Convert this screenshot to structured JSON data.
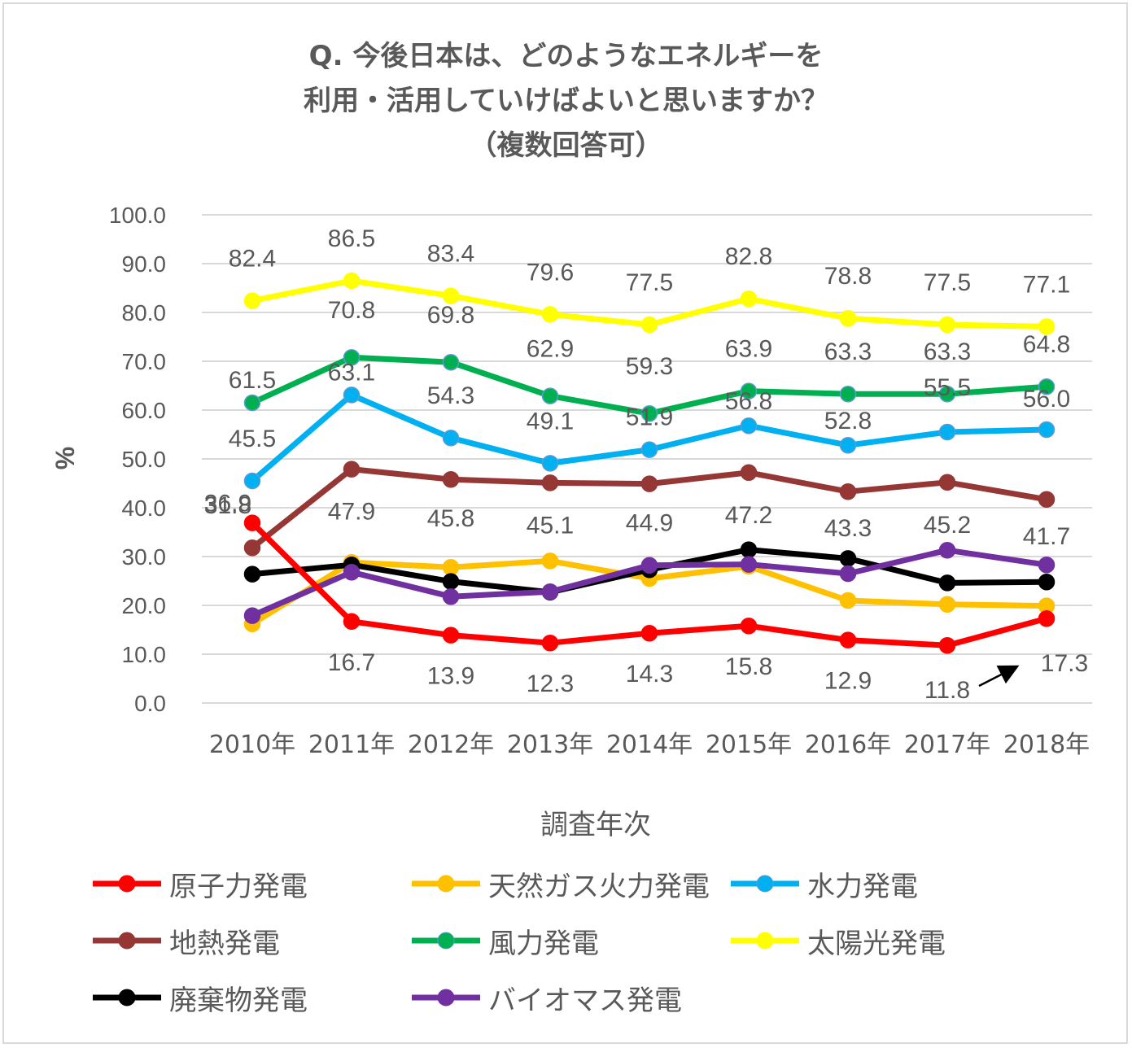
{
  "chart_data": {
    "type": "line",
    "title_lines": [
      "Q. 今後日本は、どのようなエネルギーを",
      "利用・活用していけばよいと思いますか？",
      "（複数回答可）"
    ],
    "xlabel": "調査年次",
    "ylabel": "%",
    "ylim": [
      0,
      100
    ],
    "yticks": [
      "0.0",
      "10.0",
      "20.0",
      "30.0",
      "40.0",
      "50.0",
      "60.0",
      "70.0",
      "80.0",
      "90.0",
      "100.0"
    ],
    "categories": [
      "2010年",
      "2011年",
      "2012年",
      "2013年",
      "2014年",
      "2015年",
      "2016年",
      "2017年",
      "2018年"
    ],
    "grid": true,
    "legend_position": "bottom",
    "series": [
      {
        "name": "原子力発電",
        "color": "#ff0000",
        "values": [
          36.9,
          16.7,
          13.9,
          12.3,
          14.3,
          15.8,
          12.9,
          11.8,
          17.3
        ],
        "labels": [
          "36.9",
          "16.7",
          "13.9",
          "12.3",
          "14.3",
          "15.8",
          "12.9",
          "11.8",
          "17.3"
        ]
      },
      {
        "name": "天然ガス火力発電",
        "color": "#ffc000",
        "values": [
          16.2,
          28.8,
          27.8,
          29.1,
          25.5,
          28.0,
          21.0,
          20.2,
          19.9
        ],
        "labels": []
      },
      {
        "name": "水力発電",
        "color": "#00b0f0",
        "values": [
          45.5,
          63.1,
          54.3,
          49.1,
          51.9,
          56.8,
          52.8,
          55.5,
          56.0
        ],
        "labels": [
          "45.5",
          "63.1",
          "54.3",
          "49.1",
          "51.9",
          "56.8",
          "52.8",
          "55.5",
          "56.0"
        ]
      },
      {
        "name": "地熱発電",
        "color": "#953735",
        "values": [
          31.8,
          47.9,
          45.8,
          45.1,
          44.9,
          47.2,
          43.3,
          45.2,
          41.7
        ],
        "labels": [
          "31.8",
          "47.9",
          "45.8",
          "45.1",
          "44.9",
          "47.2",
          "43.3",
          "45.2",
          "41.7"
        ]
      },
      {
        "name": "風力発電",
        "color": "#00b050",
        "values": [
          61.5,
          70.8,
          69.8,
          62.9,
          59.3,
          63.9,
          63.3,
          63.3,
          64.8
        ],
        "labels": [
          "61.5",
          "70.8",
          "69.8",
          "62.9",
          "59.3",
          "63.9",
          "63.3",
          "63.3",
          "64.8"
        ]
      },
      {
        "name": "太陽光発電",
        "color": "#ffff00",
        "values": [
          82.4,
          86.5,
          83.4,
          79.6,
          77.5,
          82.8,
          78.8,
          77.5,
          77.1
        ],
        "labels": [
          "82.4",
          "86.5",
          "83.4",
          "79.6",
          "77.5",
          "82.8",
          "78.8",
          "77.5",
          "77.1"
        ]
      },
      {
        "name": "廃棄物発電",
        "color": "#000000",
        "values": [
          26.4,
          28.3,
          24.9,
          22.7,
          27.3,
          31.4,
          29.6,
          24.6,
          24.8
        ],
        "labels": []
      },
      {
        "name": "バイオマス発電",
        "color": "#7030a0",
        "values": [
          17.9,
          26.8,
          21.8,
          22.8,
          28.2,
          28.4,
          26.5,
          31.3,
          28.3
        ],
        "labels": []
      }
    ]
  }
}
